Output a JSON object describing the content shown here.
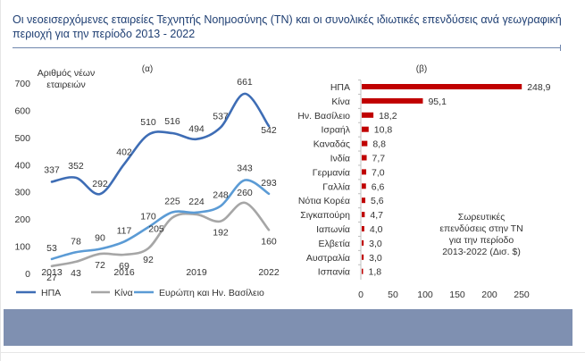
{
  "title": "Οι νεοεισερχόμενες εταιρείες Τεχνητής Νοημοσύνης (ΤΝ)  και οι συνολικές ιδιωτικές επενδύσεις ανά γεωγραφική περιοχή για την περίοδο 2013 - 2022",
  "colors": {
    "title": "#1f3f73",
    "usa": "#3e6db5",
    "china": "#a6a6a6",
    "europe": "#5b9bd5",
    "bars": "#c00000",
    "footer": "#7f90b1"
  },
  "chart_data": [
    {
      "type": "line",
      "panel_label": "(α)",
      "ylabel": "Αριθμός νέων εταιρειών",
      "ylim": [
        0,
        700
      ],
      "yticks": [
        0,
        100,
        200,
        300,
        400,
        500,
        600,
        700
      ],
      "x": [
        2013,
        2014,
        2015,
        2016,
        2017,
        2018,
        2019,
        2020,
        2021,
        2022
      ],
      "xtick_labels": [
        "2013",
        "2016",
        "2019",
        "2022"
      ],
      "legend_position": "bottom",
      "grid": false,
      "series": [
        {
          "name": "ΗΠΑ",
          "values": [
            337,
            352,
            292,
            402,
            510,
            516,
            494,
            537,
            661,
            542
          ]
        },
        {
          "name": "Κίνα",
          "values": [
            27,
            43,
            72,
            69,
            92,
            205,
            217,
            192,
            260,
            160
          ]
        },
        {
          "name": "Ευρώπη και Ην. Βασίλειο",
          "values": [
            53,
            78,
            90,
            117,
            170,
            225,
            224,
            248,
            343,
            293
          ]
        }
      ]
    },
    {
      "type": "bar",
      "orientation": "horizontal",
      "panel_label": "(β)",
      "annotation": "Σωρευτικές επενδύσεις στην ΤΝ για την περίοδο 2013-2022 (Δισ. $)",
      "xlim": [
        0,
        250
      ],
      "xticks": [
        0,
        50,
        100,
        150,
        200,
        250
      ],
      "categories": [
        "ΗΠΑ",
        "Κίνα",
        "Ην. Βασίλειο",
        "Ισραήλ",
        "Καναδάς",
        "Ινδία",
        "Γερμανία",
        "Γαλλία",
        "Νότια Κορέα",
        "Σιγκαπούρη",
        "Ιαπωνία",
        "Ελβετία",
        "Αυστραλία",
        "Ισπανία"
      ],
      "values": [
        248.9,
        95.1,
        18.2,
        10.8,
        8.8,
        7.7,
        7.0,
        6.6,
        5.6,
        4.7,
        4.0,
        3.0,
        3.0,
        1.8
      ],
      "value_labels": [
        "248,9",
        "95,1",
        "18,2",
        "10,8",
        "8,8",
        "7,7",
        "7,0",
        "6,6",
        "5,6",
        "4,7",
        "4,0",
        "3,0",
        "3,0",
        "1,8"
      ]
    }
  ]
}
